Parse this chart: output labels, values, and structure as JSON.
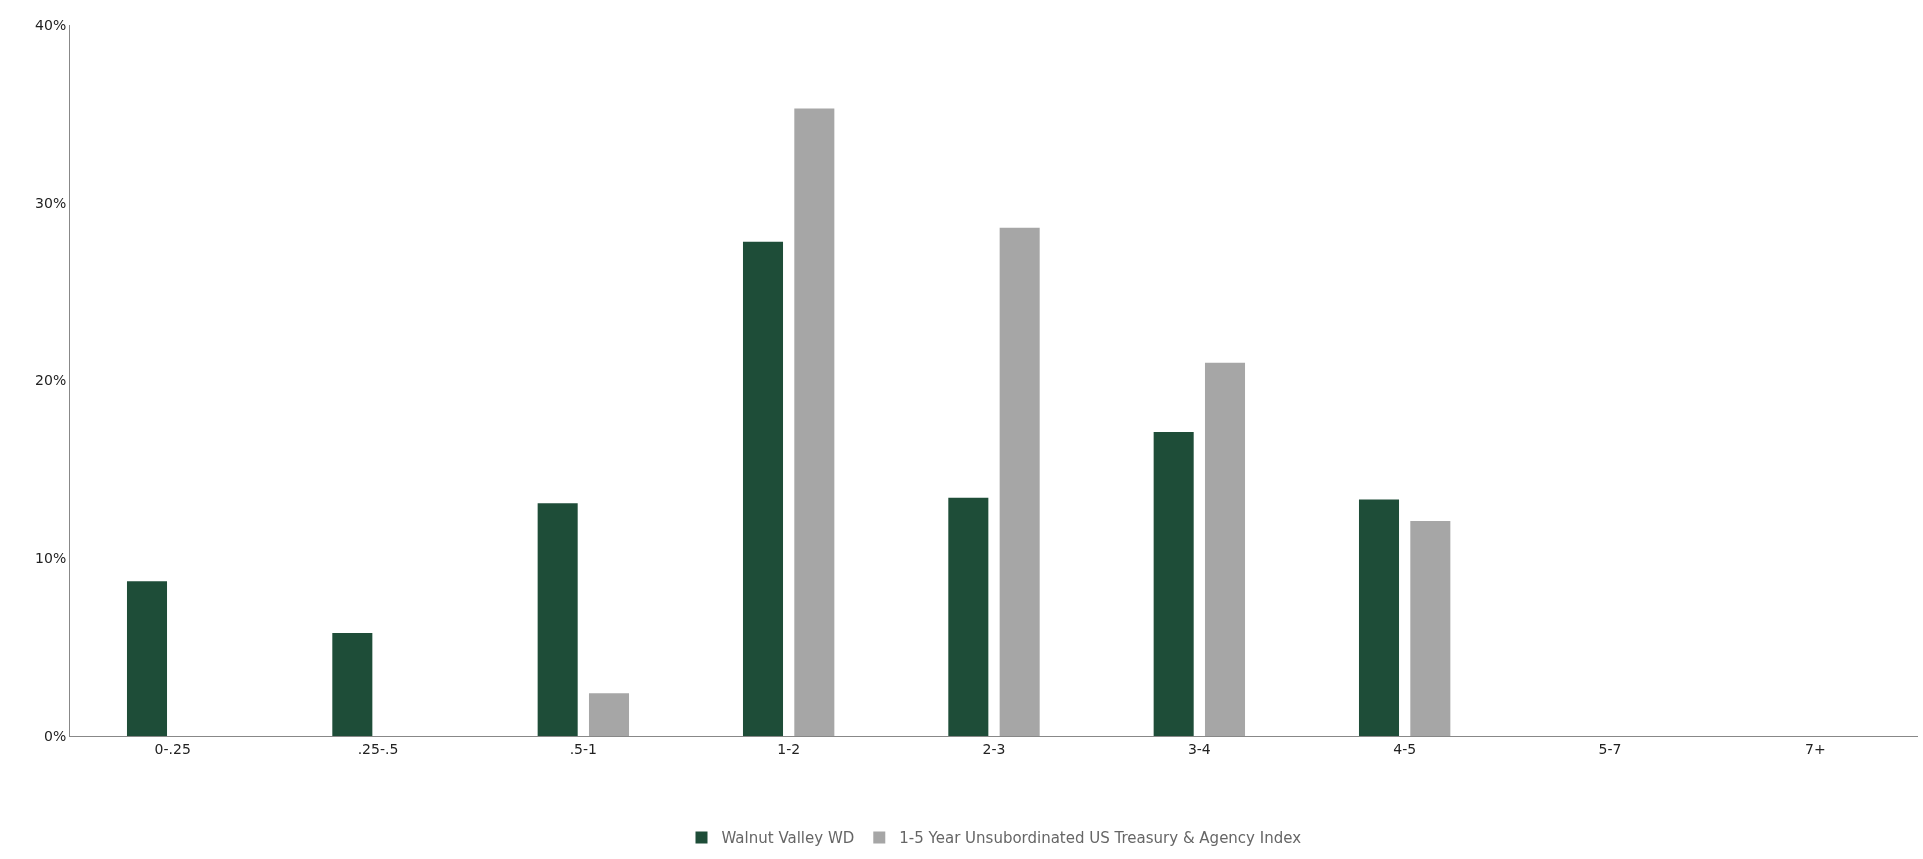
{
  "chart_data": {
    "type": "bar",
    "categories": [
      "0-.25",
      ".25-.5",
      ".5-1",
      "1-2",
      "2-3",
      "3-4",
      "4-5",
      "5-7",
      "7+"
    ],
    "series": [
      {
        "name": "Walnut Valley WD",
        "color": "#1e4d38",
        "values": [
          8.7,
          5.8,
          13.1,
          27.8,
          13.4,
          17.1,
          13.3,
          null,
          null
        ]
      },
      {
        "name": "1-5 Year Unsubordinated US Treasury & Agency Index",
        "color": "#a6a6a6",
        "values": [
          null,
          null,
          2.4,
          35.3,
          28.6,
          21.0,
          12.1,
          null,
          null
        ]
      }
    ],
    "ylim": [
      0,
      40
    ],
    "yticks": [
      {
        "value": 0,
        "label": "0%"
      },
      {
        "value": 10,
        "label": "10%"
      },
      {
        "value": 20,
        "label": "20%"
      },
      {
        "value": 30,
        "label": "30%"
      },
      {
        "value": 40,
        "label": "40%"
      }
    ],
    "legend": "bottom"
  }
}
